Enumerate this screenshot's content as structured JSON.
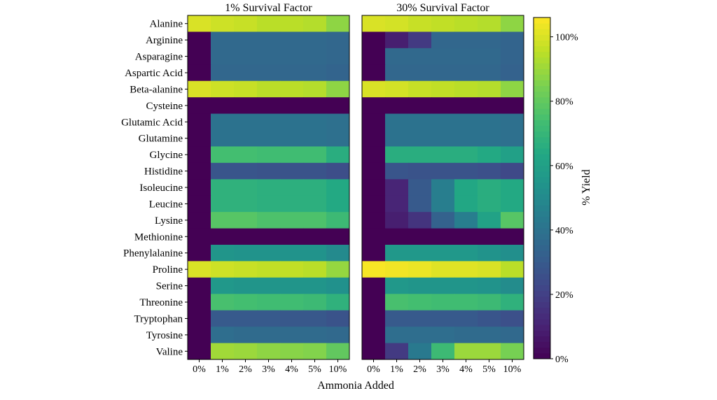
{
  "chart_data": [
    {
      "type": "heatmap",
      "title": "1% Survival Factor",
      "xlabel": "Ammonia Added",
      "x_categories": [
        "0%",
        "1%",
        "2%",
        "3%",
        "4%",
        "5%",
        "10%"
      ],
      "y_categories": [
        "Alanine",
        "Arginine",
        "Asparagine",
        "Aspartic Acid",
        "Beta-alanine",
        "Cysteine",
        "Glutamic Acid",
        "Glutamine",
        "Glycine",
        "Histidine",
        "Isoleucine",
        "Leucine",
        "Lysine",
        "Methionine",
        "Phenylalanine",
        "Proline",
        "Serine",
        "Threonine",
        "Tryptophan",
        "Tyrosine",
        "Valine"
      ],
      "values": [
        [
          100,
          98,
          97,
          95,
          95,
          94,
          88
        ],
        [
          0,
          36,
          36,
          36,
          36,
          36,
          35
        ],
        [
          0,
          36,
          36,
          36,
          36,
          36,
          35
        ],
        [
          0,
          35,
          35,
          35,
          35,
          35,
          34
        ],
        [
          100,
          98,
          97,
          95,
          95,
          94,
          88
        ],
        [
          0,
          0,
          0,
          0,
          0,
          0,
          0
        ],
        [
          0,
          40,
          40,
          40,
          40,
          40,
          39
        ],
        [
          0,
          40,
          40,
          40,
          40,
          40,
          39
        ],
        [
          0,
          74,
          74,
          73,
          73,
          73,
          66
        ],
        [
          0,
          28,
          28,
          27,
          27,
          27,
          25
        ],
        [
          0,
          68,
          68,
          67,
          67,
          67,
          64
        ],
        [
          0,
          68,
          68,
          67,
          67,
          67,
          64
        ],
        [
          0,
          78,
          78,
          76,
          76,
          76,
          72
        ],
        [
          0,
          0,
          0,
          0,
          0,
          0,
          0
        ],
        [
          0,
          55,
          54,
          54,
          54,
          54,
          50
        ],
        [
          100,
          98,
          97,
          96,
          96,
          95,
          89
        ],
        [
          0,
          56,
          55,
          55,
          55,
          55,
          53
        ],
        [
          0,
          75,
          74,
          73,
          73,
          72,
          68
        ],
        [
          0,
          30,
          30,
          30,
          29,
          29,
          27
        ],
        [
          0,
          38,
          37,
          37,
          37,
          37,
          36
        ],
        [
          0,
          91,
          90,
          88,
          87,
          86,
          80
        ]
      ]
    },
    {
      "type": "heatmap",
      "title": "30% Survival Factor",
      "xlabel": "Ammonia Added",
      "x_categories": [
        "0%",
        "1%",
        "2%",
        "3%",
        "4%",
        "5%",
        "10%"
      ],
      "y_categories": [
        "Alanine",
        "Arginine",
        "Asparagine",
        "Aspartic Acid",
        "Beta-alanine",
        "Cysteine",
        "Glutamic Acid",
        "Glutamine",
        "Glycine",
        "Histidine",
        "Isoleucine",
        "Leucine",
        "Lysine",
        "Methionine",
        "Phenylalanine",
        "Proline",
        "Serine",
        "Threonine",
        "Tryptophan",
        "Tyrosine",
        "Valine"
      ],
      "values": [
        [
          100,
          99,
          97,
          96,
          95,
          94,
          88
        ],
        [
          0,
          9,
          18,
          35,
          35,
          35,
          34
        ],
        [
          0,
          36,
          36,
          36,
          36,
          36,
          34
        ],
        [
          0,
          35,
          35,
          35,
          35,
          35,
          33
        ],
        [
          100,
          99,
          97,
          96,
          95,
          94,
          88
        ],
        [
          0,
          0,
          0,
          0,
          0,
          0,
          0
        ],
        [
          0,
          40,
          40,
          40,
          40,
          40,
          39
        ],
        [
          0,
          40,
          40,
          40,
          40,
          40,
          39
        ],
        [
          0,
          66,
          66,
          66,
          66,
          64,
          60
        ],
        [
          0,
          28,
          27,
          27,
          27,
          26,
          23
        ],
        [
          0,
          11,
          30,
          45,
          63,
          66,
          64
        ],
        [
          0,
          11,
          30,
          45,
          63,
          66,
          64
        ],
        [
          0,
          9,
          16,
          33,
          45,
          61,
          78
        ],
        [
          0,
          0,
          0,
          0,
          0,
          0,
          0
        ],
        [
          0,
          56,
          56,
          56,
          56,
          54,
          52
        ],
        [
          105,
          104,
          103,
          101,
          101,
          100,
          95
        ],
        [
          0,
          56,
          55,
          55,
          55,
          54,
          51
        ],
        [
          0,
          75,
          74,
          73,
          73,
          72,
          68
        ],
        [
          0,
          30,
          30,
          30,
          30,
          28,
          26
        ],
        [
          0,
          38,
          38,
          38,
          37,
          37,
          36
        ],
        [
          0,
          18,
          43,
          72,
          90,
          90,
          84
        ]
      ]
    }
  ],
  "colorbar": {
    "label": "% Yield",
    "colormap": "viridis",
    "range": [
      0,
      106
    ],
    "ticks": [
      0,
      20,
      40,
      60,
      80,
      100
    ],
    "tick_labels": [
      "0%",
      "20%",
      "40%",
      "60%",
      "80%",
      "100%"
    ]
  },
  "xlabel": "Ammonia Added"
}
